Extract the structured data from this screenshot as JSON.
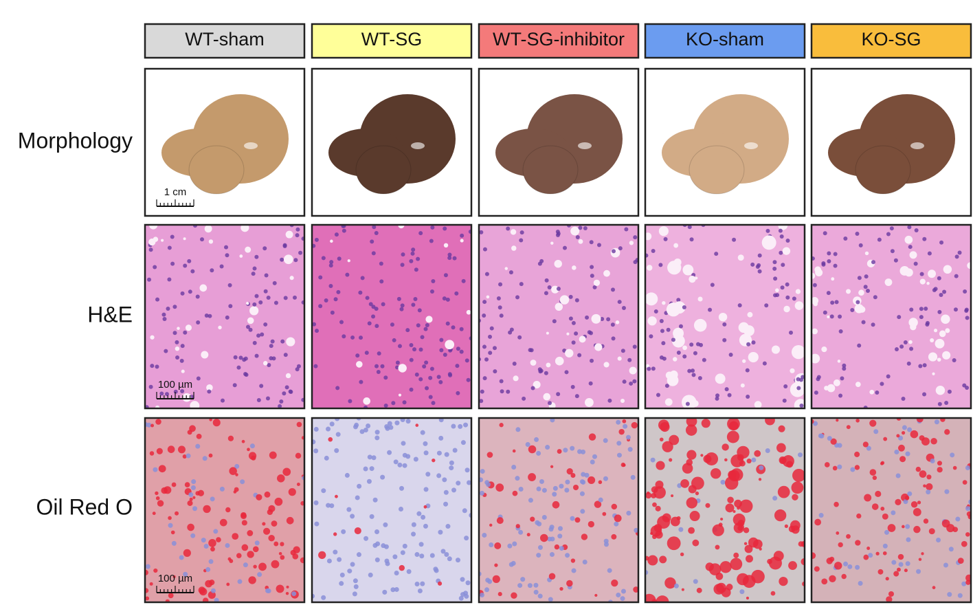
{
  "columns": [
    {
      "label": "WT-sham",
      "color": "#d9d9d9"
    },
    {
      "label": "WT-SG",
      "color": "#ffff99"
    },
    {
      "label": "WT-SG-inhibitor",
      "color": "#f47a7a"
    },
    {
      "label": "KO-sham",
      "color": "#6b9cf0"
    },
    {
      "label": "KO-SG",
      "color": "#f9bd3c"
    }
  ],
  "rows": [
    {
      "label": "Morphology",
      "scale_bar": "1 cm"
    },
    {
      "label": "H&E",
      "scale_bar": "100 µm"
    },
    {
      "label": "Oil Red O",
      "scale_bar": "100 µm"
    }
  ]
}
